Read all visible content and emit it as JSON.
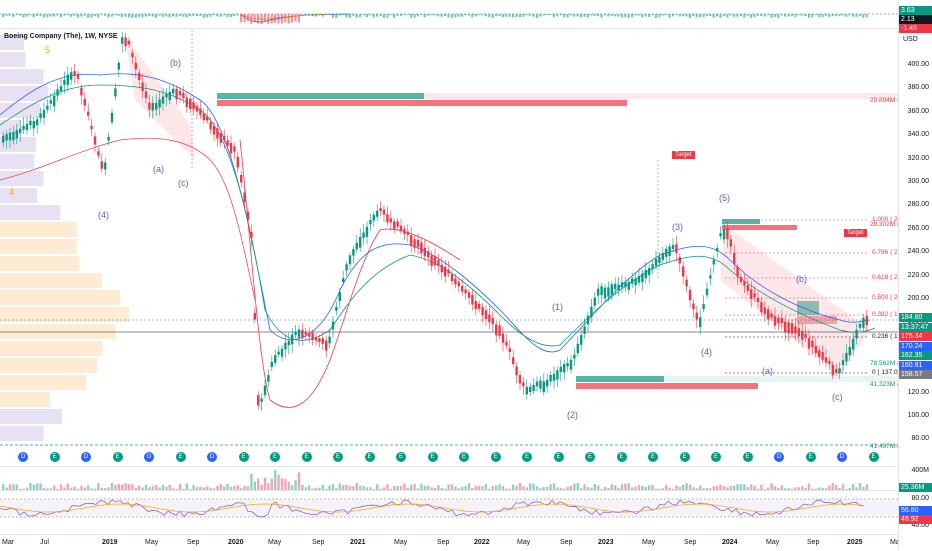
{
  "symbol": {
    "title": "Boeing Company (The), 1W, NYSE",
    "currency": "USD"
  },
  "top_osc": {
    "values": [
      "3.63",
      "2.13",
      "-1.49"
    ],
    "colors": [
      "#089981",
      "#131722",
      "#f23645"
    ]
  },
  "price_axis": [
    "400.00",
    "380.00",
    "360.00",
    "340.00",
    "320.00",
    "300.00",
    "280.00",
    "260.00",
    "240.00",
    "220.00",
    "200.00",
    "180.00",
    "160.00",
    "140.00",
    "120.00",
    "100.00",
    "80.00"
  ],
  "price_badges": [
    {
      "text": "184.80",
      "color": "#089981"
    },
    {
      "text": "13:37:47",
      "color": "#089981"
    },
    {
      "text": "175.34",
      "color": "#f23645"
    },
    {
      "text": "170.24",
      "color": "#2962ff"
    },
    {
      "text": "162.35",
      "color": "#089981"
    },
    {
      "text": "160.81",
      "color": "#2962ff"
    },
    {
      "text": "158.57",
      "color": "#787b86"
    }
  ],
  "volume_axis": {
    "top": "400M",
    "badge": "25.36M"
  },
  "rsi_axis": {
    "labels": [
      "80.00",
      "40.00"
    ],
    "badges": [
      "56.80",
      "48.92"
    ]
  },
  "time_axis": [
    {
      "label": "Mar",
      "year": false
    },
    {
      "label": "Jul",
      "year": false
    },
    {
      "label": "2019",
      "year": true
    },
    {
      "label": "May",
      "year": false
    },
    {
      "label": "Sep",
      "year": false
    },
    {
      "label": "2020",
      "year": true
    },
    {
      "label": "May",
      "year": false
    },
    {
      "label": "Sep",
      "year": false
    },
    {
      "label": "2021",
      "year": true
    },
    {
      "label": "May",
      "year": false
    },
    {
      "label": "Sep",
      "year": false
    },
    {
      "label": "2022",
      "year": true
    },
    {
      "label": "May",
      "year": false
    },
    {
      "label": "Sep",
      "year": false
    },
    {
      "label": "2023",
      "year": true
    },
    {
      "label": "May",
      "year": false
    },
    {
      "label": "Sep",
      "year": false
    },
    {
      "label": "2024",
      "year": true
    },
    {
      "label": "May",
      "year": false
    },
    {
      "label": "Sep",
      "year": false
    },
    {
      "label": "2025",
      "year": true
    },
    {
      "label": "May",
      "year": false
    }
  ],
  "waves": [
    "5",
    "(b)",
    "(a)",
    "(c)",
    "(4)",
    "4",
    "(1)",
    "(2)",
    "(3)",
    "(5)",
    "(4)",
    "(b)",
    "(a)",
    "(c)"
  ],
  "fib_labels": [
    "1.000 ( 267",
    "0.786 ( 239",
    "0.618 ( 217",
    "0.500 ( 202",
    "0.382 ( 186",
    "0.236 ( 167",
    "0 ( 137.03 )"
  ],
  "volume_labels": [
    "20.894M (21",
    "28.302M (28",
    "78.562M (7",
    "41.323M (17",
    "41.497M (17"
  ],
  "targets": [
    "Target",
    "Target"
  ],
  "events": [
    "D",
    "E",
    "D",
    "E",
    "D",
    "E",
    "D",
    "E",
    "E",
    "E",
    "E",
    "E",
    "E",
    "E",
    "E",
    "E",
    "E",
    "E",
    "E",
    "E",
    "E",
    "E",
    "E",
    "E",
    "D",
    "E",
    "D",
    "E"
  ],
  "colors": {
    "up": "#089981",
    "down": "#f23645",
    "accent": "#2962ff",
    "wave": "#5b5ec7"
  }
}
